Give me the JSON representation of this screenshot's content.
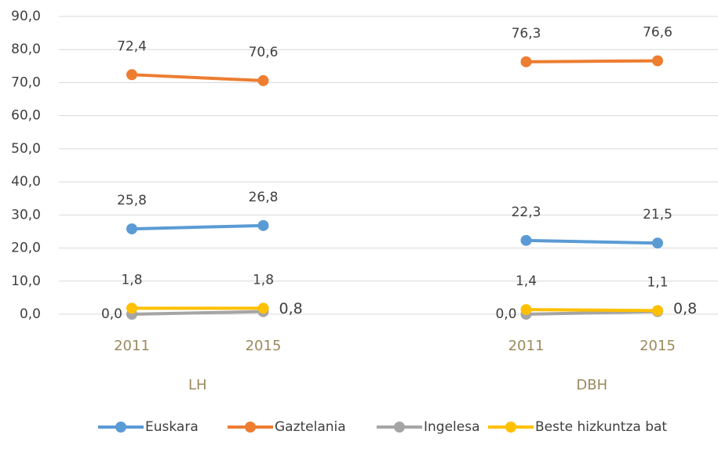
{
  "chart_data": {
    "type": "line",
    "categories": [
      "2011",
      "2015",
      null,
      "2011",
      "2015"
    ],
    "groups": [
      "LH",
      "DBH"
    ],
    "series": [
      {
        "name": "Euskara",
        "color": "#5b9bd5",
        "values": [
          25.8,
          26.8,
          null,
          22.3,
          21.5
        ],
        "value_labels": [
          "25,8",
          "26,8",
          null,
          "22,3",
          "21,5"
        ]
      },
      {
        "name": "Gaztelania",
        "color": "#ed7d31",
        "values": [
          72.4,
          70.6,
          null,
          76.3,
          76.6
        ],
        "value_labels": [
          "72,4",
          "70,6",
          null,
          "76,3",
          "76,6"
        ]
      },
      {
        "name": "Ingelesa",
        "color": "#a5a5a5",
        "values": [
          0.0,
          0.8,
          null,
          0.0,
          0.8
        ],
        "value_labels": [
          "0,0",
          "0,8",
          null,
          "0,0",
          "0,8"
        ]
      },
      {
        "name": "Beste hizkuntza bat",
        "color": "#ffc000",
        "values": [
          1.8,
          1.8,
          null,
          1.4,
          1.1
        ],
        "value_labels": [
          "1,8",
          "1,8",
          null,
          "1,4",
          "1,1"
        ]
      }
    ],
    "ylim": [
      0,
      90
    ],
    "yticks": [
      {
        "value": 0,
        "label": "0,0"
      },
      {
        "value": 10,
        "label": "10,0"
      },
      {
        "value": 20,
        "label": "20,0"
      },
      {
        "value": 30,
        "label": "30,0"
      },
      {
        "value": 40,
        "label": "40,0"
      },
      {
        "value": 50,
        "label": "50,0"
      },
      {
        "value": 60,
        "label": "60,0"
      },
      {
        "value": 70,
        "label": "70,0"
      },
      {
        "value": 80,
        "label": "80,0"
      },
      {
        "value": 90,
        "label": "90,0"
      }
    ],
    "grid": true,
    "legend": "bottom"
  }
}
